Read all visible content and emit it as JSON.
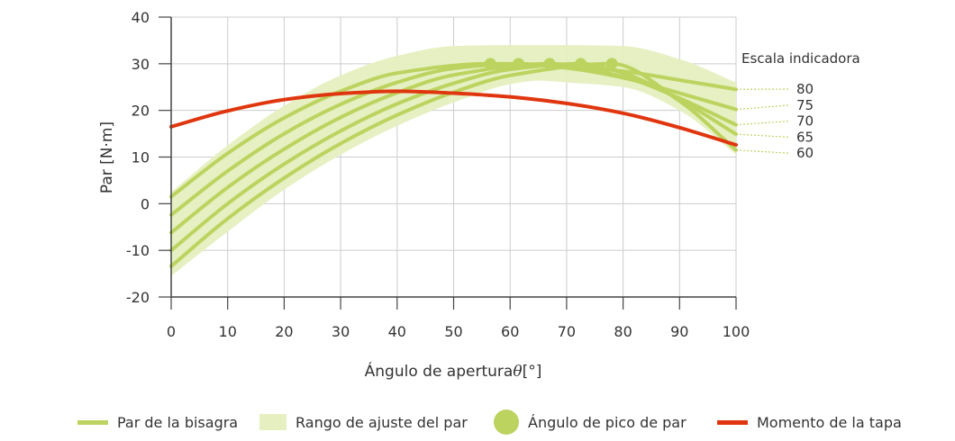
{
  "chart_data": {
    "type": "line",
    "xlabel": "Ángulo de apertura",
    "xlabel_symbol": "θ",
    "xlabel_unit": "[°]",
    "ylabel": "Par [N·m]",
    "xlim": [
      0,
      100
    ],
    "ylim": [
      -20,
      40
    ],
    "x_ticks": [
      "0",
      "10",
      "20",
      "30",
      "40",
      "50",
      "60",
      "70",
      "80",
      "90",
      "100"
    ],
    "y_ticks": [
      "40",
      "30",
      "20",
      "10",
      "0",
      "-10",
      "-20"
    ],
    "grid": true,
    "scale_title": "Escala indicadora",
    "scale_labels": [
      "80",
      "75",
      "70",
      "65",
      "60"
    ],
    "hinge_series": [
      {
        "scale": "80",
        "peak_x": 56.5,
        "points": [
          [
            0,
            1.5
          ],
          [
            10,
            10.8
          ],
          [
            20,
            18.4
          ],
          [
            30,
            24.1
          ],
          [
            40,
            28.0
          ],
          [
            56.5,
            30.0
          ],
          [
            70,
            29.5
          ],
          [
            80,
            28.4
          ],
          [
            90,
            26.5
          ],
          [
            100,
            24.5
          ]
        ]
      },
      {
        "scale": "75",
        "peak_x": 61.5,
        "points": [
          [
            0,
            -2.4
          ],
          [
            10,
            7.0
          ],
          [
            20,
            15.0
          ],
          [
            30,
            21.3
          ],
          [
            40,
            26.0
          ],
          [
            50,
            29.0
          ],
          [
            61.5,
            30.0
          ],
          [
            70,
            29.1
          ],
          [
            80,
            27.0
          ],
          [
            90,
            23.7
          ],
          [
            100,
            20.2
          ]
        ]
      },
      {
        "scale": "70",
        "peak_x": 67,
        "points": [
          [
            0,
            -6.2
          ],
          [
            10,
            3.5
          ],
          [
            20,
            11.7
          ],
          [
            30,
            18.5
          ],
          [
            40,
            23.8
          ],
          [
            50,
            27.6
          ],
          [
            67,
            30.0
          ],
          [
            80,
            27.2
          ],
          [
            90,
            22.6
          ],
          [
            100,
            16.9
          ]
        ]
      },
      {
        "scale": "65",
        "peak_x": 72.5,
        "points": [
          [
            0,
            -10.0
          ],
          [
            10,
            0.0
          ],
          [
            20,
            8.5
          ],
          [
            30,
            15.6
          ],
          [
            40,
            21.4
          ],
          [
            50,
            25.8
          ],
          [
            60,
            28.8
          ],
          [
            72.5,
            30.0
          ],
          [
            80,
            28.0
          ],
          [
            90,
            22.3
          ],
          [
            100,
            14.9
          ]
        ]
      },
      {
        "scale": "60",
        "peak_x": 78,
        "points": [
          [
            0,
            -13.4
          ],
          [
            10,
            -3.2
          ],
          [
            20,
            5.5
          ],
          [
            30,
            12.9
          ],
          [
            40,
            19.0
          ],
          [
            50,
            23.9
          ],
          [
            60,
            27.5
          ],
          [
            78,
            30.0
          ],
          [
            90,
            22.0
          ],
          [
            100,
            11.5
          ]
        ]
      }
    ],
    "adjust_range": {
      "upper": [
        [
          0,
          2.5
        ],
        [
          10,
          12.5
        ],
        [
          20,
          21.0
        ],
        [
          30,
          27.5
        ],
        [
          40,
          31.7
        ],
        [
          50,
          33.8
        ],
        [
          60,
          34.0
        ],
        [
          70,
          34.0
        ],
        [
          80,
          33.8
        ],
        [
          90,
          31.0
        ],
        [
          100,
          26.0
        ]
      ],
      "lower": [
        [
          0,
          -15.5
        ],
        [
          10,
          -6.0
        ],
        [
          20,
          3.0
        ],
        [
          30,
          10.5
        ],
        [
          40,
          16.7
        ],
        [
          50,
          21.7
        ],
        [
          60,
          25.6
        ],
        [
          65,
          26.4
        ],
        [
          70,
          26.0
        ],
        [
          80,
          25.0
        ],
        [
          90,
          20.0
        ],
        [
          100,
          10.5
        ]
      ]
    },
    "lid_moment": [
      [
        0,
        16.5
      ],
      [
        10,
        19.9
      ],
      [
        20,
        22.3
      ],
      [
        30,
        23.6
      ],
      [
        40,
        24.1
      ],
      [
        50,
        23.7
      ],
      [
        60,
        22.9
      ],
      [
        70,
        21.5
      ],
      [
        80,
        19.4
      ],
      [
        90,
        16.3
      ],
      [
        100,
        12.6
      ]
    ],
    "legend": [
      {
        "key": "hinge",
        "label": "Par de la bisagra"
      },
      {
        "key": "range",
        "label": "Rango de ajuste del par"
      },
      {
        "key": "peak",
        "label": "Ángulo de pico de par"
      },
      {
        "key": "lid",
        "label": "Momento de la tapa"
      }
    ],
    "colors": {
      "hinge": "#bcd35f",
      "range": "#e5efbf",
      "peak": "#bcd35f",
      "lid": "#e0360f",
      "grid": "#cccccc",
      "axis": "#444444"
    }
  }
}
